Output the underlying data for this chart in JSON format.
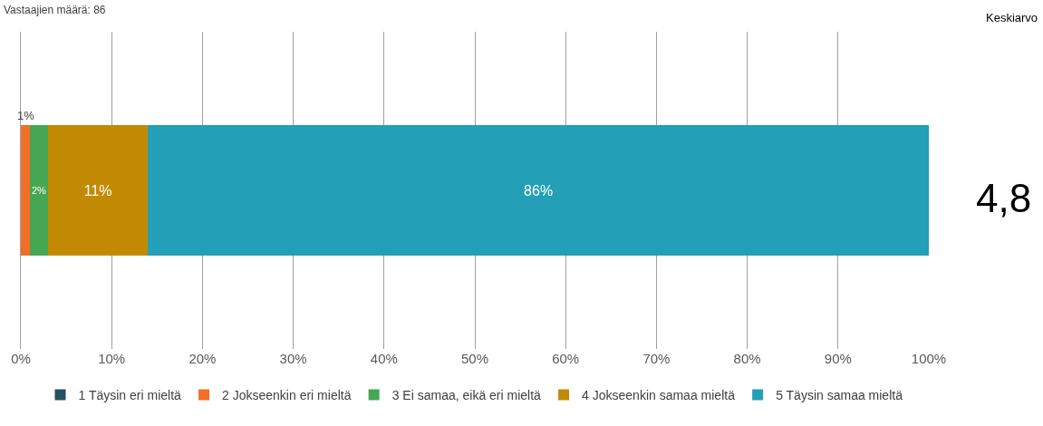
{
  "chart_data": {
    "type": "bar",
    "orientation": "horizontal",
    "stacked": true,
    "categories": [
      null
    ],
    "series": [
      {
        "name": "1 Täysin eri mieltä",
        "color": "#264f62",
        "values": [
          0
        ],
        "value_labels": [
          null
        ]
      },
      {
        "name": "2 Jokseenkin eri mieltä",
        "color": "#f07028",
        "values": [
          1
        ],
        "value_labels": [
          "1%"
        ]
      },
      {
        "name": "3 Ei samaa, eikä eri mieltä",
        "color": "#46a651",
        "values": [
          2
        ],
        "value_labels": [
          "2%"
        ]
      },
      {
        "name": "4 Jokseenkin samaa mieltä",
        "color": "#c28a02",
        "values": [
          11
        ],
        "value_labels": [
          "11%"
        ]
      },
      {
        "name": "5 Täysin samaa mieltä",
        "color": "#23a0b7",
        "values": [
          86
        ],
        "value_labels": [
          "86%"
        ]
      }
    ],
    "xlim": [
      0,
      100
    ],
    "xticks": [
      {
        "value": 0,
        "label": "0%"
      },
      {
        "value": 10,
        "label": "10%"
      },
      {
        "value": 20,
        "label": "20%"
      },
      {
        "value": 30,
        "label": "30%"
      },
      {
        "value": 40,
        "label": "40%"
      },
      {
        "value": 50,
        "label": "50%"
      },
      {
        "value": 60,
        "label": "60%"
      },
      {
        "value": 70,
        "label": "70%"
      },
      {
        "value": 80,
        "label": "80%"
      },
      {
        "value": 90,
        "label": "90%"
      },
      {
        "value": 100,
        "label": "100%"
      }
    ],
    "grid": "x",
    "legend": "bottom",
    "annotations": [
      "Vastaajien määrä: 86",
      "Keskiarvo",
      "4,8"
    ]
  }
}
